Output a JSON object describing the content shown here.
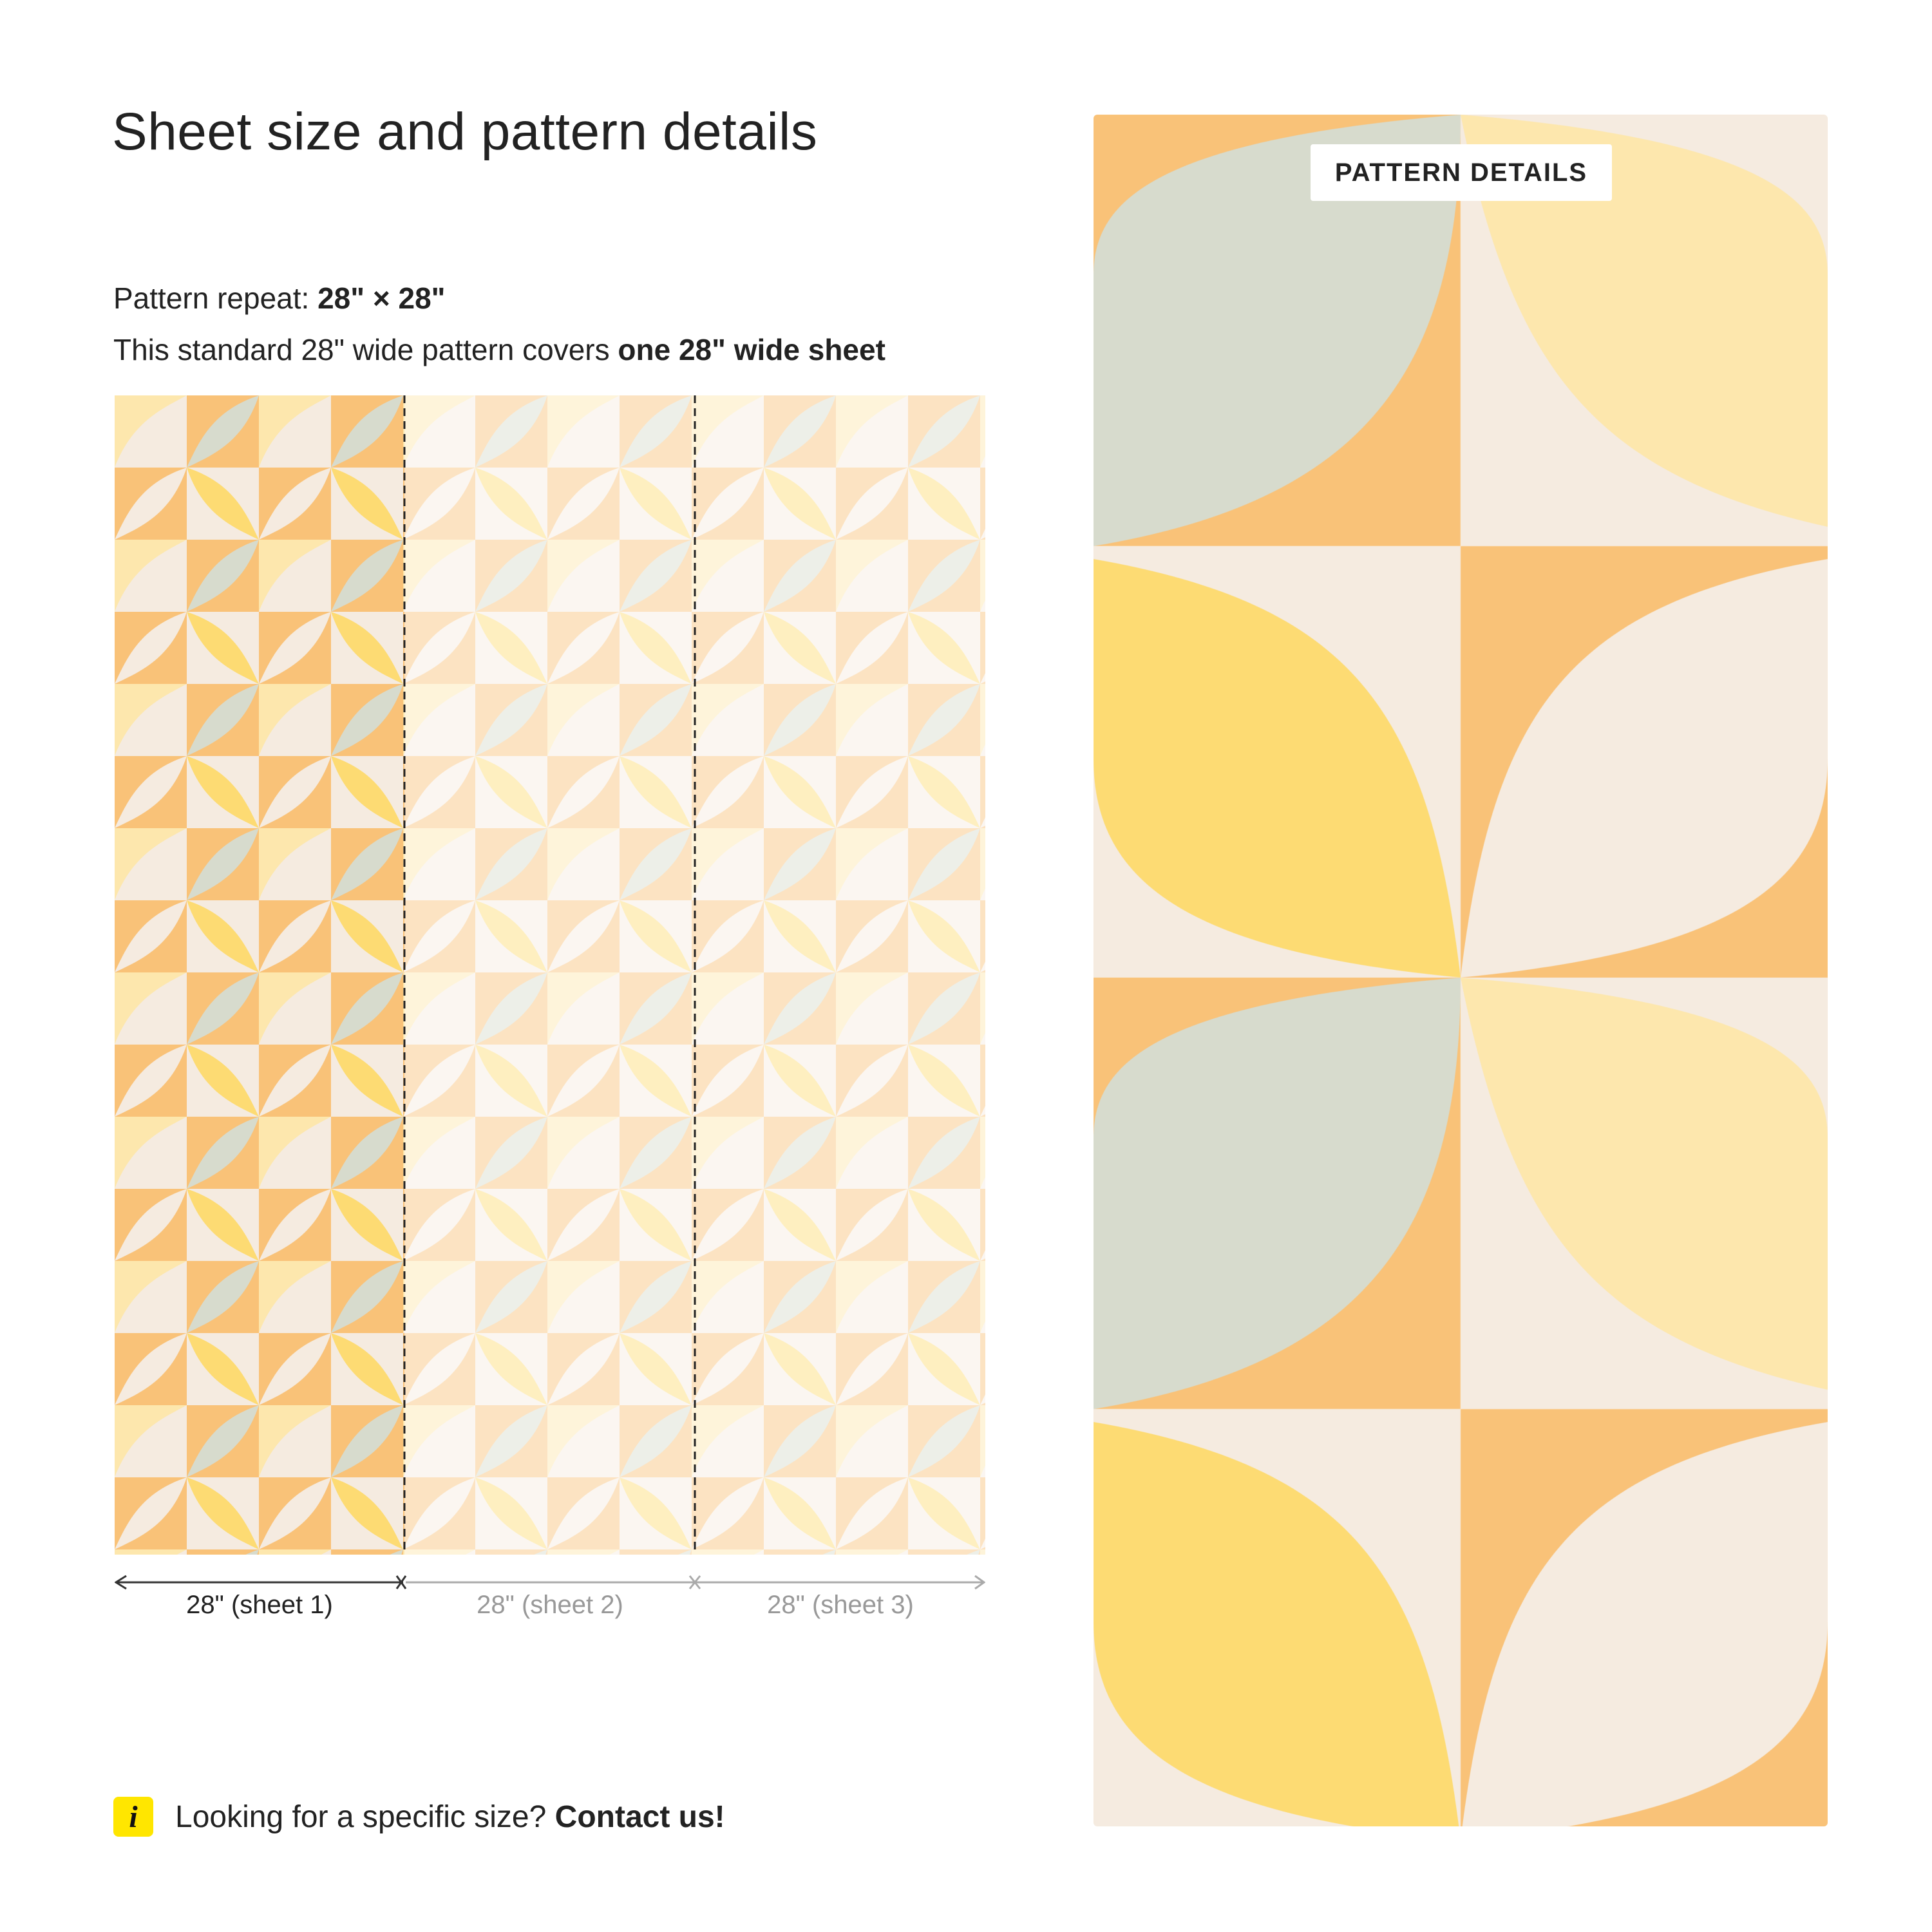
{
  "page": {
    "title": "Sheet size and pattern details"
  },
  "specs": {
    "repeat_label": "Pattern repeat:",
    "repeat_value": "28\" × 28\"",
    "coverage_label": "This standard 28\" wide pattern covers",
    "coverage_value": "one 28\" wide sheet"
  },
  "sheets": [
    {
      "label": "28\" (sheet 1)",
      "active": true
    },
    {
      "label": "28\" (sheet 2)",
      "active": false
    },
    {
      "label": "28\" (sheet 3)",
      "active": false
    }
  ],
  "detail": {
    "badge": "PATTERN DETAILS"
  },
  "info": {
    "icon": "info-icon",
    "text": "Looking for a specific size?",
    "link": "Contact us!"
  },
  "colors": {
    "orange": "#f9c278",
    "cream": "#f5ebe0",
    "sage": "#d7dbcd",
    "pale_yellow": "#fde7ad",
    "yellow": "#fddb73",
    "text": "#222222",
    "muted_text": "#999999",
    "info_yellow": "#ffe600"
  }
}
